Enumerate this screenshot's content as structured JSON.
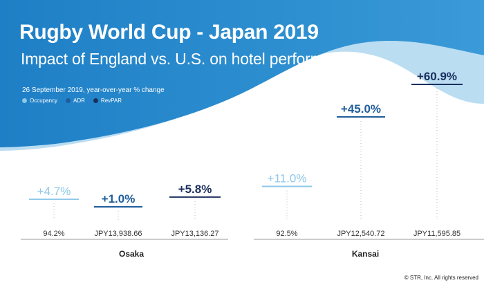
{
  "header": {
    "title": "Rugby World Cup - Japan 2019",
    "subtitle": "Impact of England vs. U.S. on hotel performance",
    "note": "26 September 2019, year-over-year % change"
  },
  "legend": [
    {
      "name": "Occupancy",
      "color": "#8ec8e8"
    },
    {
      "name": "ADR",
      "color": "#1f5d9c"
    },
    {
      "name": "RevPAR",
      "color": "#1b2f5e"
    }
  ],
  "colors": {
    "background_band": "#2d8fd0",
    "background_band_light": "#5fb0e4",
    "occupancy": "#8ec8e8",
    "adr": "#1f5d9c",
    "revpar": "#1b2f5e",
    "axis": "#9a9a9a"
  },
  "chart_data": {
    "type": "bar",
    "title": "Rugby World Cup - Japan 2019",
    "subtitle": "Impact of England vs. U.S. on hotel performance",
    "note": "26 September 2019, year-over-year % change",
    "groups": [
      {
        "name": "Osaka",
        "items": [
          {
            "series": "Occupancy",
            "change": 4.7,
            "label": "+4.7%",
            "level": "94.2%"
          },
          {
            "series": "ADR",
            "change": 1.0,
            "label": "+1.0%",
            "level": "JPY13,938.66"
          },
          {
            "series": "RevPAR",
            "change": 5.8,
            "label": "+5.8%",
            "level": "JPY13,136.27"
          }
        ]
      },
      {
        "name": "Kansai",
        "items": [
          {
            "series": "Occupancy",
            "change": 11.0,
            "label": "+11.0%",
            "level": "92.5%"
          },
          {
            "series": "ADR",
            "change": 45.0,
            "label": "+45.0%",
            "level": "JPY12,540.72"
          },
          {
            "series": "RevPAR",
            "change": 60.9,
            "label": "+60.9%",
            "level": "JPY11,595.85"
          }
        ]
      }
    ],
    "series": [
      {
        "name": "Occupancy",
        "values": [
          4.7,
          11.0
        ]
      },
      {
        "name": "ADR",
        "values": [
          1.0,
          45.0
        ]
      },
      {
        "name": "RevPAR",
        "values": [
          5.8,
          60.9
        ]
      }
    ],
    "categories": [
      "Osaka",
      "Kansai"
    ],
    "ylim": [
      0,
      60.9
    ],
    "legend_position": "top-left"
  },
  "footer": {
    "copyright": "© STR, Inc. All rights reserved"
  }
}
